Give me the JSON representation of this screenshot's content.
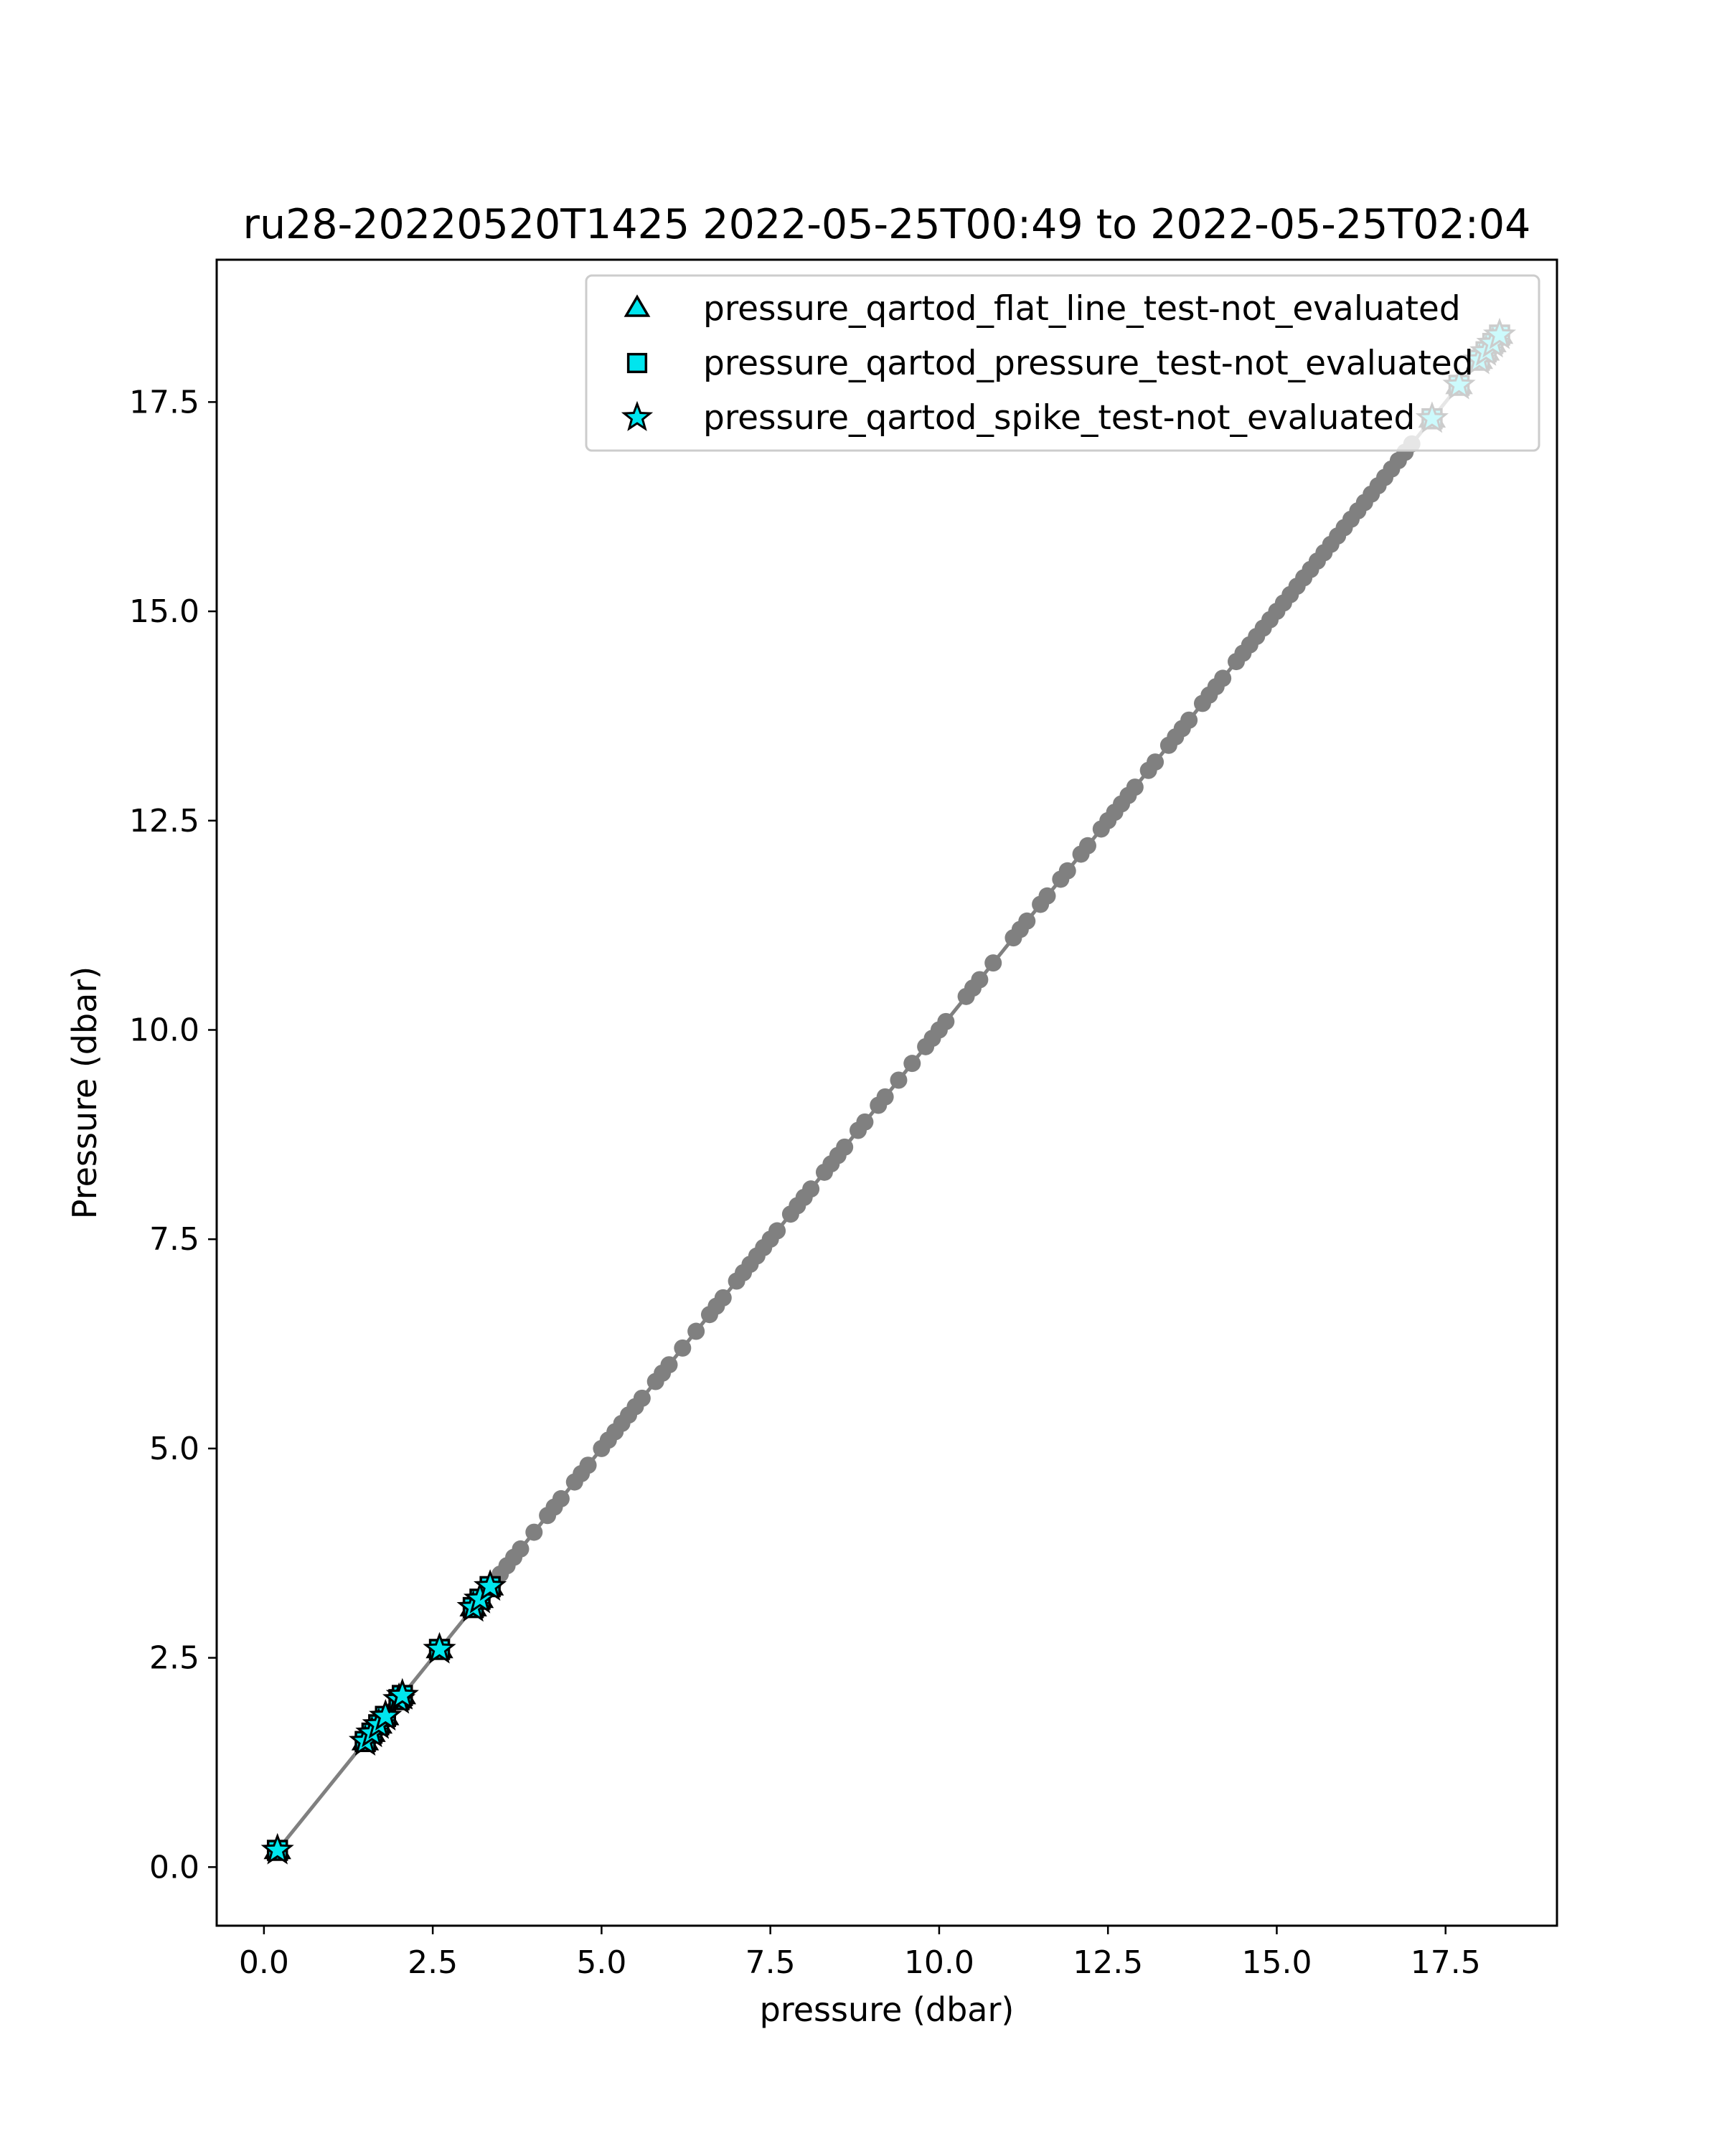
{
  "chart_data": {
    "type": "scatter",
    "title": "ru28-20220520T1425 2022-05-25T00:49 to 2022-05-25T02:04",
    "xlabel": "pressure (dbar)",
    "ylabel": "Pressure (dbar)",
    "xlim": [
      -0.7,
      19.15
    ],
    "ylim": [
      19.2,
      -0.7
    ],
    "y_inverted": true,
    "x_ticks": [
      "0.0",
      "2.5",
      "5.0",
      "7.5",
      "10.0",
      "12.5",
      "15.0",
      "17.5"
    ],
    "x_tick_values": [
      0,
      2.5,
      5,
      7.5,
      10,
      12.5,
      15,
      17.5
    ],
    "y_ticks": [
      "0.0",
      "2.5",
      "5.0",
      "7.5",
      "10.0",
      "12.5",
      "15.0",
      "17.5"
    ],
    "y_tick_values": [
      0,
      2.5,
      5,
      7.5,
      10,
      12.5,
      15,
      17.5
    ],
    "grid": false,
    "legend_position": "top-right",
    "colors": {
      "profile_line": "#808080",
      "profile_points": "#808080",
      "flag_marker_fill": "#00e5ee",
      "flag_marker_edge": "#000000"
    },
    "profile": {
      "start": 0.2,
      "end": 18.3,
      "sample_pressures": [
        3.4,
        3.5,
        3.6,
        3.7,
        3.8,
        4.0,
        4.2,
        4.3,
        4.4,
        4.6,
        4.7,
        4.8,
        5.0,
        5.1,
        5.2,
        5.3,
        5.4,
        5.5,
        5.6,
        5.8,
        5.9,
        6.0,
        6.2,
        6.4,
        6.6,
        6.7,
        6.8,
        7.0,
        7.1,
        7.2,
        7.3,
        7.4,
        7.5,
        7.6,
        7.8,
        7.9,
        8.0,
        8.1,
        8.3,
        8.4,
        8.5,
        8.6,
        8.8,
        8.9,
        9.1,
        9.2,
        9.4,
        9.6,
        9.8,
        9.9,
        10.0,
        10.1,
        10.4,
        10.5,
        10.6,
        10.8,
        11.1,
        11.2,
        11.3,
        11.5,
        11.6,
        11.8,
        11.9,
        12.1,
        12.2,
        12.4,
        12.5,
        12.6,
        12.7,
        12.8,
        12.9,
        13.1,
        13.2,
        13.4,
        13.5,
        13.6,
        13.7,
        13.9,
        14.0,
        14.1,
        14.2,
        14.4,
        14.5,
        14.6,
        14.7,
        14.8,
        14.9,
        15.0,
        15.1,
        15.2,
        15.3,
        15.4,
        15.5,
        15.6,
        15.7,
        15.8,
        15.9,
        16.0,
        16.1,
        16.2,
        16.3,
        16.4,
        16.5,
        16.6,
        16.7,
        16.8,
        16.9,
        17.0
      ]
    },
    "series": [
      {
        "name": "pressure_qartod_flat_line_test-not_evaluated",
        "marker": "triangle",
        "x": [
          0.2,
          1.5,
          1.6,
          1.7,
          1.8,
          2.0,
          2.05,
          2.6,
          3.1,
          3.2,
          3.35,
          17.3,
          17.7,
          18.0,
          18.1,
          18.2,
          18.3
        ],
        "y": [
          0.2,
          1.5,
          1.6,
          1.7,
          1.8,
          2.0,
          2.05,
          2.6,
          3.1,
          3.2,
          3.35,
          17.3,
          17.7,
          18.0,
          18.1,
          18.2,
          18.3
        ]
      },
      {
        "name": "pressure_qartod_pressure_test-not_evaluated",
        "marker": "square",
        "x": [
          0.2,
          1.5,
          1.6,
          1.7,
          1.8,
          2.0,
          2.05,
          2.6,
          3.1,
          3.2,
          3.35,
          17.3,
          17.7,
          18.0,
          18.1,
          18.2,
          18.3
        ],
        "y": [
          0.2,
          1.5,
          1.6,
          1.7,
          1.8,
          2.0,
          2.05,
          2.6,
          3.1,
          3.2,
          3.35,
          17.3,
          17.7,
          18.0,
          18.1,
          18.2,
          18.3
        ]
      },
      {
        "name": "pressure_qartod_spike_test-not_evaluated",
        "marker": "star",
        "x": [
          0.2,
          1.5,
          1.6,
          1.7,
          1.8,
          2.0,
          2.05,
          2.6,
          3.1,
          3.2,
          3.35,
          17.3,
          17.7,
          18.0,
          18.1,
          18.2,
          18.3
        ],
        "y": [
          0.2,
          1.5,
          1.6,
          1.7,
          1.8,
          2.0,
          2.05,
          2.6,
          3.1,
          3.2,
          3.35,
          17.3,
          17.7,
          18.0,
          18.1,
          18.2,
          18.3
        ]
      }
    ]
  }
}
